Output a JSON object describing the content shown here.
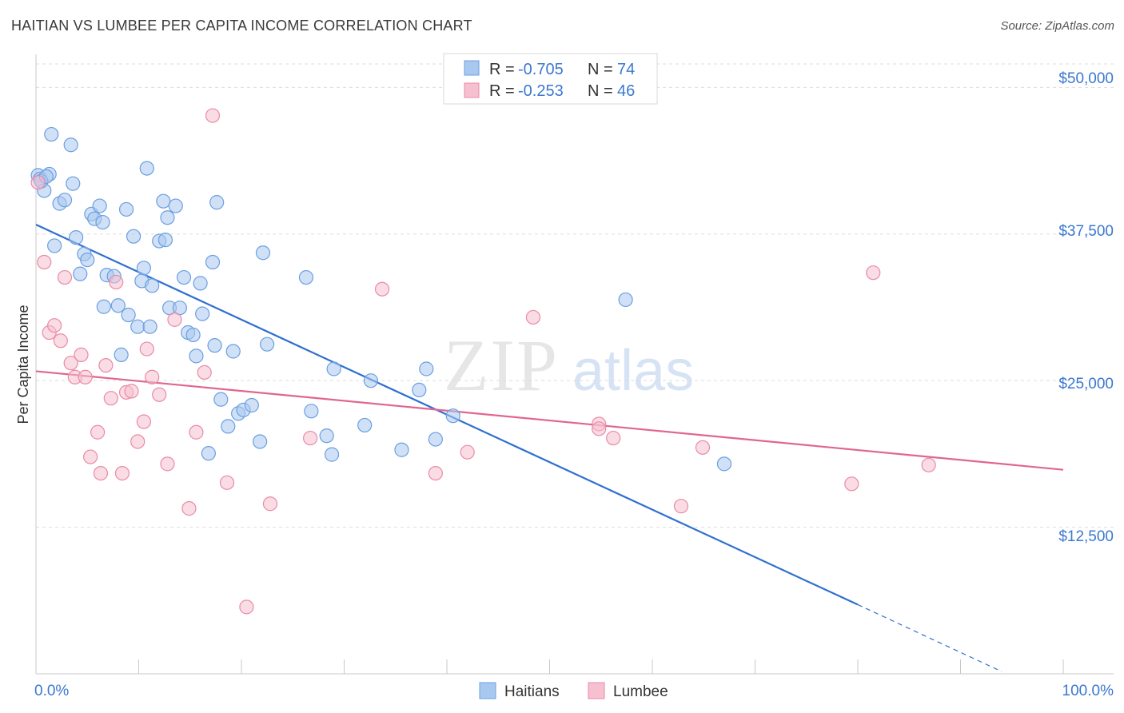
{
  "title": "HAITIAN VS LUMBEE PER CAPITA INCOME CORRELATION CHART",
  "source": "Source: ZipAtlas.com",
  "watermark": {
    "zip": "ZIP",
    "atlas": "atlas"
  },
  "colors": {
    "haitians_fill": "#a9c8f0",
    "haitians_stroke": "#6a9fe0",
    "haitians_line": "#2f6fd0",
    "lumbee_fill": "#f6c0d0",
    "lumbee_stroke": "#ea8aa8",
    "lumbee_line": "#e0668f",
    "axis_label": "#3b78d0",
    "grid": "#dddddd"
  },
  "legend": {
    "rows": [
      {
        "r_label": "R =",
        "r_value": "-0.705",
        "n_label": "N =",
        "n_value": "74"
      },
      {
        "r_label": "R =",
        "r_value": "-0.253",
        "n_label": "N =",
        "n_value": "46"
      }
    ]
  },
  "chart_data": {
    "type": "scatter",
    "title": "HAITIAN VS LUMBEE PER CAPITA INCOME CORRELATION CHART",
    "xlabel": "",
    "ylabel": "Per Capita Income",
    "xlim": [
      0,
      100
    ],
    "ylim": [
      0,
      52000
    ],
    "x_tick_labels": [
      "0.0%",
      "100.0%"
    ],
    "y_ticks": [
      12500,
      25000,
      37500,
      50000
    ],
    "y_tick_labels": [
      "$12,500",
      "$25,000",
      "$37,500",
      "$50,000"
    ],
    "grid": true,
    "legend_position": "top-center",
    "series": [
      {
        "name": "Haitians",
        "points": [
          [
            0.2,
            42500
          ],
          [
            0.4,
            42200
          ],
          [
            0.8,
            41200
          ],
          [
            1.3,
            42600
          ],
          [
            1.5,
            46000
          ],
          [
            2.3,
            40100
          ],
          [
            2.8,
            40400
          ],
          [
            3.4,
            45100
          ],
          [
            3.6,
            41800
          ],
          [
            3.9,
            37200
          ],
          [
            4.3,
            34100
          ],
          [
            4.7,
            35800
          ],
          [
            5.0,
            35300
          ],
          [
            5.4,
            39200
          ],
          [
            5.7,
            38800
          ],
          [
            6.2,
            39900
          ],
          [
            6.5,
            38500
          ],
          [
            6.6,
            31300
          ],
          [
            6.9,
            34000
          ],
          [
            7.6,
            33900
          ],
          [
            8.0,
            31400
          ],
          [
            8.3,
            27200
          ],
          [
            8.8,
            39600
          ],
          [
            9.0,
            30600
          ],
          [
            9.5,
            37300
          ],
          [
            9.9,
            29600
          ],
          [
            10.3,
            33500
          ],
          [
            10.5,
            34600
          ],
          [
            10.8,
            43100
          ],
          [
            11.1,
            29600
          ],
          [
            11.3,
            33100
          ],
          [
            12.0,
            36900
          ],
          [
            12.4,
            40300
          ],
          [
            12.6,
            37000
          ],
          [
            12.8,
            38900
          ],
          [
            13.0,
            31200
          ],
          [
            13.6,
            39900
          ],
          [
            14.0,
            31200
          ],
          [
            14.4,
            33800
          ],
          [
            14.8,
            29100
          ],
          [
            15.3,
            28900
          ],
          [
            15.6,
            27100
          ],
          [
            16.0,
            33300
          ],
          [
            16.2,
            30700
          ],
          [
            16.8,
            18800
          ],
          [
            17.2,
            35100
          ],
          [
            17.4,
            28000
          ],
          [
            17.6,
            40200
          ],
          [
            18.0,
            23400
          ],
          [
            18.7,
            21100
          ],
          [
            19.2,
            27500
          ],
          [
            19.7,
            22200
          ],
          [
            20.2,
            22500
          ],
          [
            21.0,
            22900
          ],
          [
            21.8,
            19800
          ],
          [
            22.1,
            35900
          ],
          [
            22.5,
            28100
          ],
          [
            26.3,
            33800
          ],
          [
            26.8,
            22400
          ],
          [
            28.3,
            20300
          ],
          [
            29.0,
            26000
          ],
          [
            28.8,
            18700
          ],
          [
            32.0,
            21200
          ],
          [
            32.6,
            25000
          ],
          [
            35.6,
            19100
          ],
          [
            37.3,
            24200
          ],
          [
            38.0,
            26000
          ],
          [
            38.9,
            20000
          ],
          [
            40.6,
            22000
          ],
          [
            57.4,
            31900
          ],
          [
            67.0,
            17900
          ],
          [
            0.5,
            42000
          ],
          [
            1.0,
            42400
          ],
          [
            1.8,
            36500
          ]
        ]
      },
      {
        "name": "Lumbee",
        "points": [
          [
            0.2,
            41900
          ],
          [
            0.8,
            35100
          ],
          [
            1.3,
            29100
          ],
          [
            1.8,
            29700
          ],
          [
            2.4,
            28400
          ],
          [
            2.8,
            33800
          ],
          [
            3.4,
            26500
          ],
          [
            3.8,
            25300
          ],
          [
            4.4,
            27200
          ],
          [
            4.8,
            25300
          ],
          [
            5.3,
            18500
          ],
          [
            6.0,
            20600
          ],
          [
            6.3,
            17100
          ],
          [
            6.8,
            26300
          ],
          [
            7.3,
            23500
          ],
          [
            7.8,
            33400
          ],
          [
            8.4,
            17100
          ],
          [
            8.8,
            24000
          ],
          [
            9.3,
            24100
          ],
          [
            9.9,
            19800
          ],
          [
            10.5,
            21500
          ],
          [
            10.8,
            27700
          ],
          [
            11.3,
            25300
          ],
          [
            12.0,
            23800
          ],
          [
            12.8,
            17900
          ],
          [
            13.5,
            30200
          ],
          [
            14.9,
            14100
          ],
          [
            15.6,
            20600
          ],
          [
            16.4,
            25700
          ],
          [
            17.2,
            47600
          ],
          [
            18.6,
            16300
          ],
          [
            20.5,
            5700
          ],
          [
            22.8,
            14500
          ],
          [
            26.7,
            20100
          ],
          [
            33.7,
            32800
          ],
          [
            38.9,
            17100
          ],
          [
            42.0,
            18900
          ],
          [
            48.4,
            30400
          ],
          [
            54.8,
            21300
          ],
          [
            54.8,
            20900
          ],
          [
            56.2,
            20100
          ],
          [
            62.8,
            14300
          ],
          [
            64.9,
            19300
          ],
          [
            79.4,
            16200
          ],
          [
            81.5,
            34200
          ],
          [
            86.9,
            17800
          ]
        ]
      }
    ],
    "trendlines": [
      {
        "series": "Haitians",
        "x0": 0,
        "y0": 38300,
        "x1": 80,
        "y1": 5900,
        "dashed_to_x": 94,
        "dashed_to_y": 200
      },
      {
        "series": "Lumbee",
        "x0": 0,
        "y0": 25800,
        "x1": 100,
        "y1": 17400
      }
    ]
  },
  "axis": {
    "y_title": "Per Capita Income",
    "x_min_label": "0.0%",
    "x_max_label": "100.0%",
    "y_labels": [
      "$50,000",
      "$37,500",
      "$25,000",
      "$12,500"
    ]
  },
  "bottom_legend": [
    "Haitians",
    "Lumbee"
  ]
}
